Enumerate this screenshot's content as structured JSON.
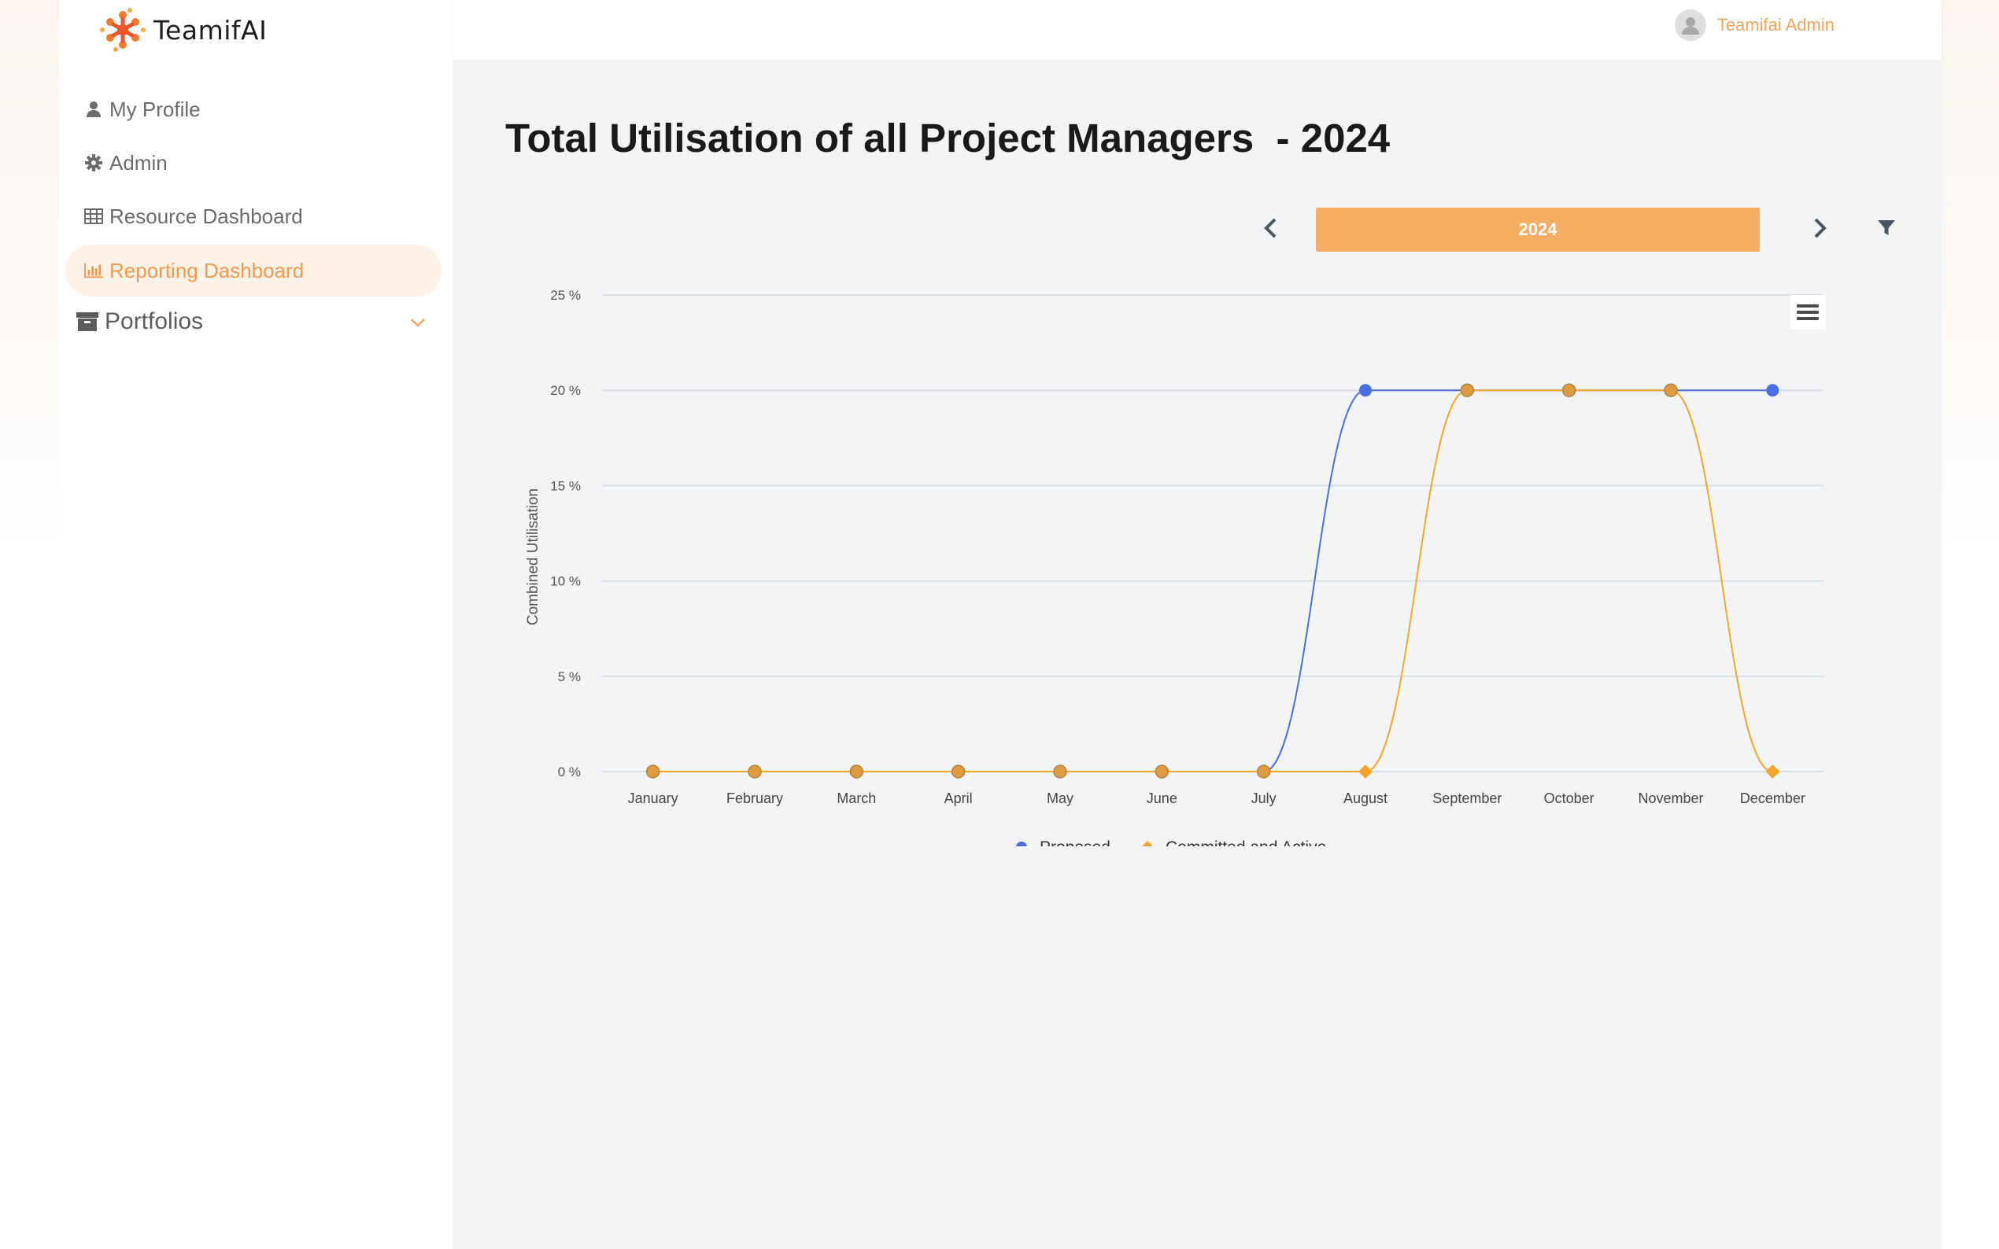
{
  "app": {
    "name": "TeamifAI"
  },
  "sidebar": {
    "items": [
      {
        "label": "My Profile",
        "icon": "user-icon"
      },
      {
        "label": "Admin",
        "icon": "gear-icon"
      },
      {
        "label": "Resource Dashboard",
        "icon": "table-icon"
      },
      {
        "label": "Reporting Dashboard",
        "icon": "bar-chart-icon",
        "active": true
      },
      {
        "label": "Portfolios",
        "icon": "archive-icon",
        "expandable": true
      }
    ]
  },
  "header": {
    "user_name": "Teamifai Admin"
  },
  "main": {
    "title": "Total Utilisation of all Project Managers  - 2024",
    "year": "2024"
  },
  "colors": {
    "accent": "#f4ad62",
    "proposed": "#4a6fe3",
    "committed": "#f4a62a"
  },
  "chart_data": {
    "type": "line",
    "categories": [
      "January",
      "February",
      "March",
      "April",
      "May",
      "June",
      "July",
      "August",
      "September",
      "October",
      "November",
      "December"
    ],
    "series": [
      {
        "name": "Proposed",
        "values": [
          0,
          0,
          0,
          0,
          0,
          0,
          0,
          20,
          20,
          20,
          20,
          20
        ]
      },
      {
        "name": "Committed and Active",
        "values": [
          0,
          0,
          0,
          0,
          0,
          0,
          0,
          0,
          20,
          20,
          20,
          0
        ]
      }
    ],
    "ylabel": "Combined Utilisation",
    "yticks": [
      "0 %",
      "5 %",
      "10 %",
      "15 %",
      "20 %",
      "25 %"
    ],
    "ylim": [
      0,
      25
    ],
    "grid": true,
    "legend": "bottom-center"
  }
}
